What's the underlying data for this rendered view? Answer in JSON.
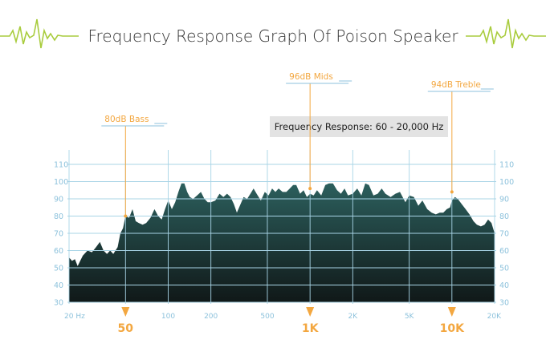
{
  "chart_data": {
    "type": "area",
    "title": "Frequency Response Graph Of Poison Speaker",
    "subtitle": "Frequency Response: 60 - 20,000 Hz",
    "y_ticks": [
      110,
      100,
      90,
      80,
      70,
      60,
      50,
      40,
      30
    ],
    "ylim": [
      30,
      110
    ],
    "x_scale": "log",
    "x_tick_labels": [
      {
        "label": "20 Hz",
        "hz": 20
      },
      {
        "label": "100",
        "hz": 100
      },
      {
        "label": "200",
        "hz": 200
      },
      {
        "label": "500",
        "hz": 500
      },
      {
        "label": "2K",
        "hz": 2000
      },
      {
        "label": "5K",
        "hz": 5000
      },
      {
        "label": "20K",
        "hz": 20000
      }
    ],
    "vertical_grid_hz": [
      20,
      50,
      100,
      200,
      500,
      1000,
      2000,
      5000,
      10000,
      20000
    ],
    "markers": [
      {
        "label": "50",
        "hz": 50
      },
      {
        "label": "1K",
        "hz": 1000
      },
      {
        "label": "10K",
        "hz": 10000
      }
    ],
    "annotations": [
      {
        "text": "80dB  Bass",
        "hz": 50,
        "db": 80
      },
      {
        "text": "96dB  Mids",
        "hz": 1000,
        "db": 96
      },
      {
        "text": "94dB  Treble",
        "hz": 10000,
        "db": 94
      }
    ],
    "series": [
      {
        "points": [
          [
            20,
            56
          ],
          [
            21,
            54
          ],
          [
            22,
            55
          ],
          [
            23,
            51
          ],
          [
            25,
            57
          ],
          [
            27,
            60
          ],
          [
            29,
            59
          ],
          [
            31,
            62
          ],
          [
            33,
            65
          ],
          [
            35,
            60
          ],
          [
            37,
            58
          ],
          [
            39,
            60
          ],
          [
            41,
            58
          ],
          [
            44,
            62
          ],
          [
            46,
            70
          ],
          [
            48,
            73
          ],
          [
            50,
            80
          ],
          [
            53,
            79
          ],
          [
            56,
            84
          ],
          [
            59,
            77
          ],
          [
            62,
            76
          ],
          [
            66,
            75
          ],
          [
            70,
            76
          ],
          [
            75,
            79
          ],
          [
            80,
            84
          ],
          [
            85,
            80
          ],
          [
            90,
            78
          ],
          [
            95,
            84
          ],
          [
            100,
            89
          ],
          [
            106,
            84
          ],
          [
            112,
            88
          ],
          [
            118,
            94
          ],
          [
            124,
            99
          ],
          [
            130,
            99
          ],
          [
            136,
            94
          ],
          [
            142,
            91
          ],
          [
            150,
            90
          ],
          [
            160,
            92
          ],
          [
            170,
            94
          ],
          [
            180,
            90
          ],
          [
            190,
            88
          ],
          [
            200,
            88
          ],
          [
            215,
            89
          ],
          [
            230,
            93
          ],
          [
            245,
            91
          ],
          [
            260,
            93
          ],
          [
            275,
            91
          ],
          [
            290,
            87
          ],
          [
            305,
            82
          ],
          [
            320,
            86
          ],
          [
            340,
            91
          ],
          [
            360,
            90
          ],
          [
            380,
            93
          ],
          [
            400,
            96
          ],
          [
            420,
            93
          ],
          [
            450,
            89
          ],
          [
            480,
            94
          ],
          [
            510,
            92
          ],
          [
            540,
            96
          ],
          [
            570,
            94
          ],
          [
            600,
            96
          ],
          [
            640,
            94
          ],
          [
            680,
            94
          ],
          [
            720,
            96
          ],
          [
            760,
            98
          ],
          [
            800,
            98
          ],
          [
            850,
            93
          ],
          [
            900,
            95
          ],
          [
            950,
            91
          ],
          [
            1000,
            93
          ],
          [
            1060,
            92
          ],
          [
            1120,
            95
          ],
          [
            1200,
            92
          ],
          [
            1280,
            98
          ],
          [
            1360,
            99
          ],
          [
            1450,
            99
          ],
          [
            1550,
            95
          ],
          [
            1650,
            93
          ],
          [
            1750,
            96
          ],
          [
            1850,
            92
          ],
          [
            2000,
            93
          ],
          [
            2150,
            96
          ],
          [
            2300,
            92
          ],
          [
            2450,
            99
          ],
          [
            2600,
            98
          ],
          [
            2800,
            92
          ],
          [
            3000,
            93
          ],
          [
            3200,
            96
          ],
          [
            3400,
            93
          ],
          [
            3700,
            91
          ],
          [
            4000,
            93
          ],
          [
            4300,
            94
          ],
          [
            4700,
            88
          ],
          [
            5000,
            92
          ],
          [
            5400,
            91
          ],
          [
            5800,
            86
          ],
          [
            6200,
            89
          ],
          [
            6700,
            84
          ],
          [
            7200,
            82
          ],
          [
            7700,
            81
          ],
          [
            8200,
            82
          ],
          [
            8700,
            82
          ],
          [
            9200,
            84
          ],
          [
            9700,
            85
          ],
          [
            10000,
            89
          ],
          [
            10500,
            91
          ],
          [
            11000,
            90
          ],
          [
            11700,
            87
          ],
          [
            12500,
            84
          ],
          [
            13300,
            81
          ],
          [
            14200,
            77
          ],
          [
            15000,
            75
          ],
          [
            16000,
            74
          ],
          [
            17000,
            75
          ],
          [
            18000,
            78
          ],
          [
            19000,
            76
          ],
          [
            20000,
            70
          ]
        ]
      }
    ],
    "colors": {
      "accent": "#f3a740",
      "axis_text": "#8dc2dc",
      "grid": "#a8d4e6",
      "fill_top": "#2c5f5d",
      "fill_bottom": "#101818",
      "waveform": "#a9cc3e",
      "subtitle_bg": "#e3e3e3",
      "title_text": "#333333"
    }
  }
}
